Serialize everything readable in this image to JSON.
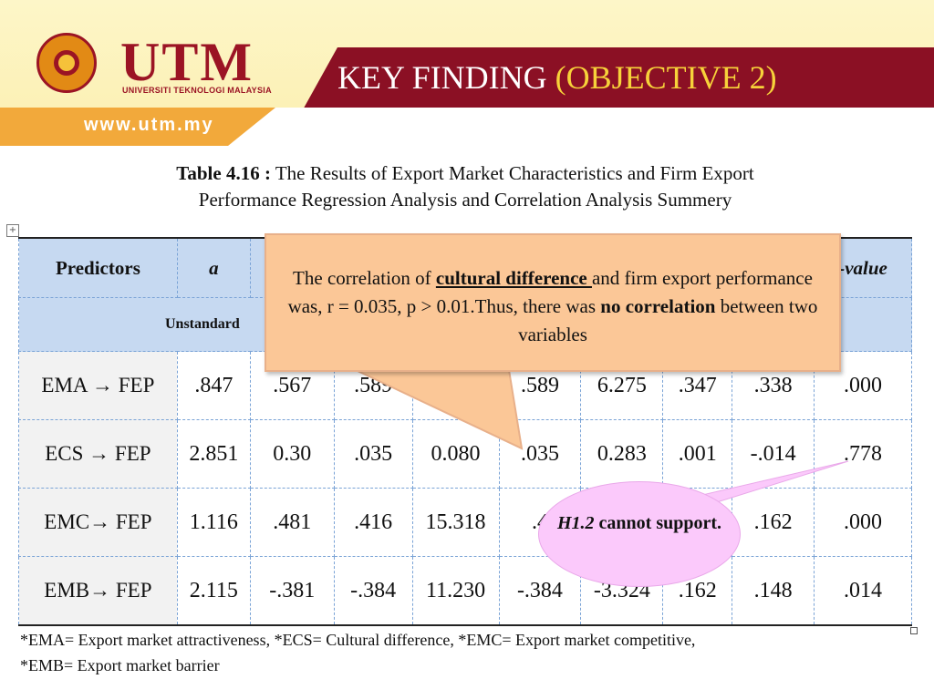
{
  "header": {
    "logo_text": "UTM",
    "logo_subtitle": "UNIVERSITI TEKNOLOGI MALAYSIA",
    "website": "www.utm.my",
    "title_main": "KEY FINDING ",
    "title_paren": "(OBJECTIVE 2)"
  },
  "caption": {
    "label": "Table 4.16 :",
    "text_line1": " The Results of Export Market Characteristics and Firm Export",
    "text_line2": "Performance Regression Analysis and Correlation Analysis Summery"
  },
  "table": {
    "header_predictors": "Predictors",
    "header_a": "a",
    "header_pvalue": "-value",
    "subheader_unstandard": "Unstandard",
    "rows": [
      {
        "predictor": "EMA → FEP",
        "a": ".847",
        "c2": ".567",
        "c3": ".589",
        "c4": "",
        "c5": ".589",
        "c6": "6.275",
        "c7": ".347",
        "c8": ".338",
        "c9": ".000"
      },
      {
        "predictor": "ECS → FEP",
        "a": "2.851",
        "c2": "0.30",
        "c3": ".035",
        "c4": "0.080",
        "c5": ".035",
        "c6": "0.283",
        "c7": ".001",
        "c8": "-.014",
        "c9": ".778"
      },
      {
        "predictor": "EMC→ FEP",
        "a": "1.116",
        "c2": ".481",
        "c3": ".416",
        "c4": "15.318",
        "c5": ".4",
        "c6": "",
        "c7": "",
        "c8": ".162",
        "c9": ".000"
      },
      {
        "predictor": "EMB→ FEP",
        "a": "2.115",
        "c2": "-.381",
        "c3": "-.384",
        "c4": "11.230",
        "c5": "-.384",
        "c6": "-3.324",
        "c7": ".162",
        "c8": ".148",
        "c9": ".014"
      }
    ]
  },
  "footnote": {
    "line1": "*EMA= Export market attractiveness, *ECS= Cultural difference, *EMC= Export market competitive,",
    "line2": "*EMB= Export market barrier"
  },
  "callout_correlation": {
    "t1": "The correlation of ",
    "t2": "cultural difference ",
    "t3": "and firm export performance was, r = 0.035, p > 0.01.Thus, there was ",
    "t4": "no c",
    "t5": "orrelation",
    "t6": " between two variables"
  },
  "callout_hypothesis": {
    "h": "H1.2",
    "rest": " cannot support."
  },
  "colors": {
    "header_red": "#8b1024",
    "header_orange": "#f2a93b",
    "title_accent": "#f7d23a",
    "table_header_blue": "#c6d9f1",
    "callout_orange": "#fbc797",
    "callout_pink": "#fbc9fb"
  },
  "icons": {
    "anchor": "move-anchor-icon",
    "logo": "utm-crest-icon"
  }
}
